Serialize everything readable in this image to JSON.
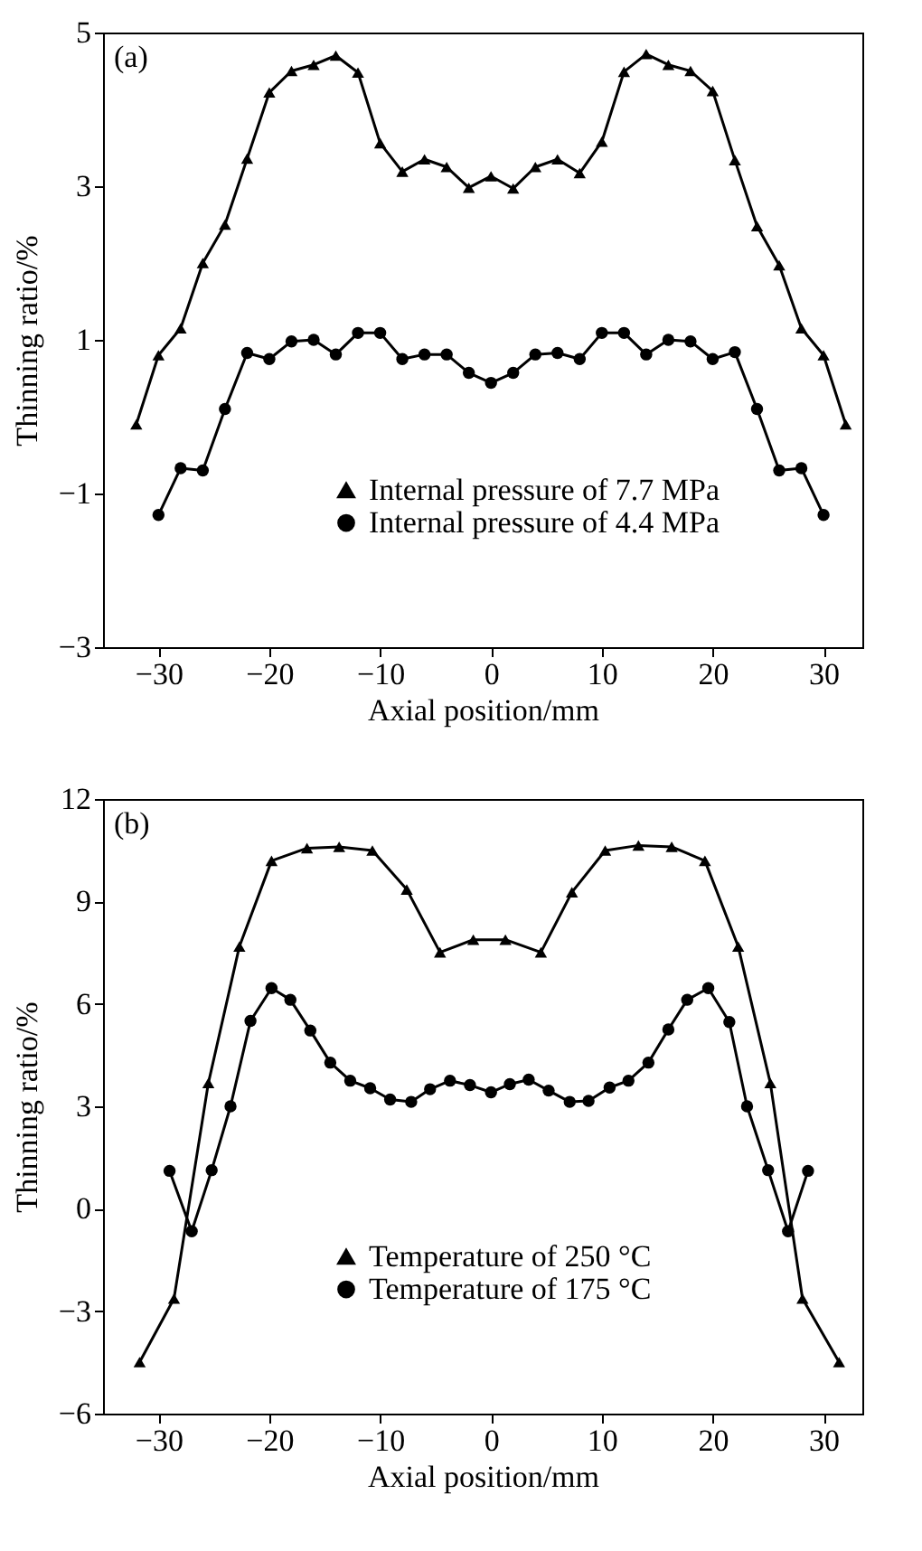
{
  "chart_data": [
    {
      "type": "line",
      "annotations": [
        "(a)"
      ],
      "xlabel": "Axial position/mm",
      "ylabel": "Thinning ratio/%",
      "xlim": [
        -35,
        33.5
      ],
      "xticks": [
        -30,
        -20,
        -10,
        0,
        10,
        20,
        30
      ],
      "ylim": [
        -3,
        5
      ],
      "yticks": [
        -3,
        -1,
        1,
        3,
        5
      ],
      "grid": false,
      "legend": "bottom",
      "series": [
        {
          "name": "Internal pressure of 7.7 MPa",
          "color": "#000000",
          "marker": "triangle",
          "x": [
            -32,
            -30,
            -28,
            -26,
            -24,
            -22,
            -20,
            -18,
            -16,
            -14,
            -12,
            -10,
            -8,
            -6,
            -4,
            -2,
            0,
            2,
            4,
            6,
            8,
            10,
            12,
            14,
            16,
            18,
            20,
            22,
            24,
            26,
            28,
            30,
            32
          ],
          "values": [
            -0.1,
            0.8,
            1.15,
            2.0,
            2.5,
            3.36,
            4.22,
            4.5,
            4.58,
            4.7,
            4.48,
            3.56,
            3.19,
            3.35,
            3.25,
            2.98,
            3.13,
            2.97,
            3.25,
            3.35,
            3.17,
            3.58,
            4.49,
            4.72,
            4.58,
            4.5,
            4.24,
            3.34,
            2.48,
            1.97,
            1.15,
            0.8,
            -0.1
          ]
        },
        {
          "name": "Internal pressure of 4.4 MPa",
          "color": "#000000",
          "marker": "circle",
          "x": [
            -30,
            -28,
            -26,
            -24,
            -22,
            -20,
            -18,
            -16,
            -14,
            -12,
            -10,
            -8,
            -6,
            -4,
            -2,
            0,
            2,
            4,
            6,
            8,
            10,
            12,
            14,
            16,
            18,
            20,
            22,
            24,
            26,
            28,
            30
          ],
          "values": [
            -1.28,
            -0.67,
            -0.7,
            0.1,
            0.83,
            0.75,
            0.98,
            1.0,
            0.81,
            1.09,
            1.09,
            0.75,
            0.81,
            0.81,
            0.57,
            0.44,
            0.57,
            0.81,
            0.83,
            0.75,
            1.09,
            1.09,
            0.81,
            1.0,
            0.98,
            0.75,
            0.84,
            0.1,
            -0.7,
            -0.67,
            -1.28
          ]
        }
      ]
    },
    {
      "type": "line",
      "annotations": [
        "(b)"
      ],
      "xlabel": "Axial position/mm",
      "ylabel": "Thinning ratio/%",
      "xlim": [
        -35,
        33.5
      ],
      "xticks": [
        -30,
        -20,
        -10,
        0,
        10,
        20,
        30
      ],
      "ylim": [
        -6,
        12
      ],
      "yticks": [
        -6,
        -3,
        0,
        3,
        6,
        9,
        12
      ],
      "grid": false,
      "legend": "bottom",
      "series": [
        {
          "name": "Temperature of 250 °C",
          "color": "#000000",
          "marker": "triangle",
          "x": [
            -31.7,
            -28.6,
            -25.5,
            -22.7,
            -19.8,
            -16.6,
            -13.7,
            -10.7,
            -7.6,
            -4.6,
            -1.6,
            1.3,
            4.5,
            7.3,
            10.3,
            13.3,
            16.3,
            19.3,
            22.3,
            25.2,
            28.1,
            31.4
          ],
          "values": [
            -4.49,
            -2.63,
            3.68,
            7.68,
            10.19,
            10.56,
            10.6,
            10.49,
            9.35,
            7.51,
            7.88,
            7.88,
            7.51,
            9.27,
            10.49,
            10.64,
            10.6,
            10.19,
            7.68,
            3.68,
            -2.63,
            -4.49
          ]
        },
        {
          "name": "Temperature of 175 °C",
          "color": "#000000",
          "marker": "circle",
          "x": [
            -29.0,
            -27.0,
            -25.2,
            -23.5,
            -21.7,
            -19.8,
            -18.1,
            -16.3,
            -14.5,
            -12.7,
            -10.9,
            -9.1,
            -7.2,
            -5.5,
            -3.7,
            -1.9,
            0,
            1.7,
            3.4,
            5.2,
            7.1,
            8.8,
            10.7,
            12.4,
            14.2,
            16.0,
            17.7,
            19.6,
            21.5,
            23.1,
            25.0,
            26.8,
            28.6
          ],
          "values": [
            1.11,
            -0.66,
            1.13,
            3.0,
            5.5,
            6.46,
            6.12,
            5.22,
            4.28,
            3.75,
            3.53,
            3.2,
            3.13,
            3.5,
            3.75,
            3.62,
            3.41,
            3.65,
            3.78,
            3.46,
            3.13,
            3.16,
            3.55,
            3.75,
            4.28,
            5.25,
            6.12,
            6.46,
            5.47,
            3.0,
            1.13,
            -0.66,
            1.11
          ]
        }
      ]
    }
  ]
}
